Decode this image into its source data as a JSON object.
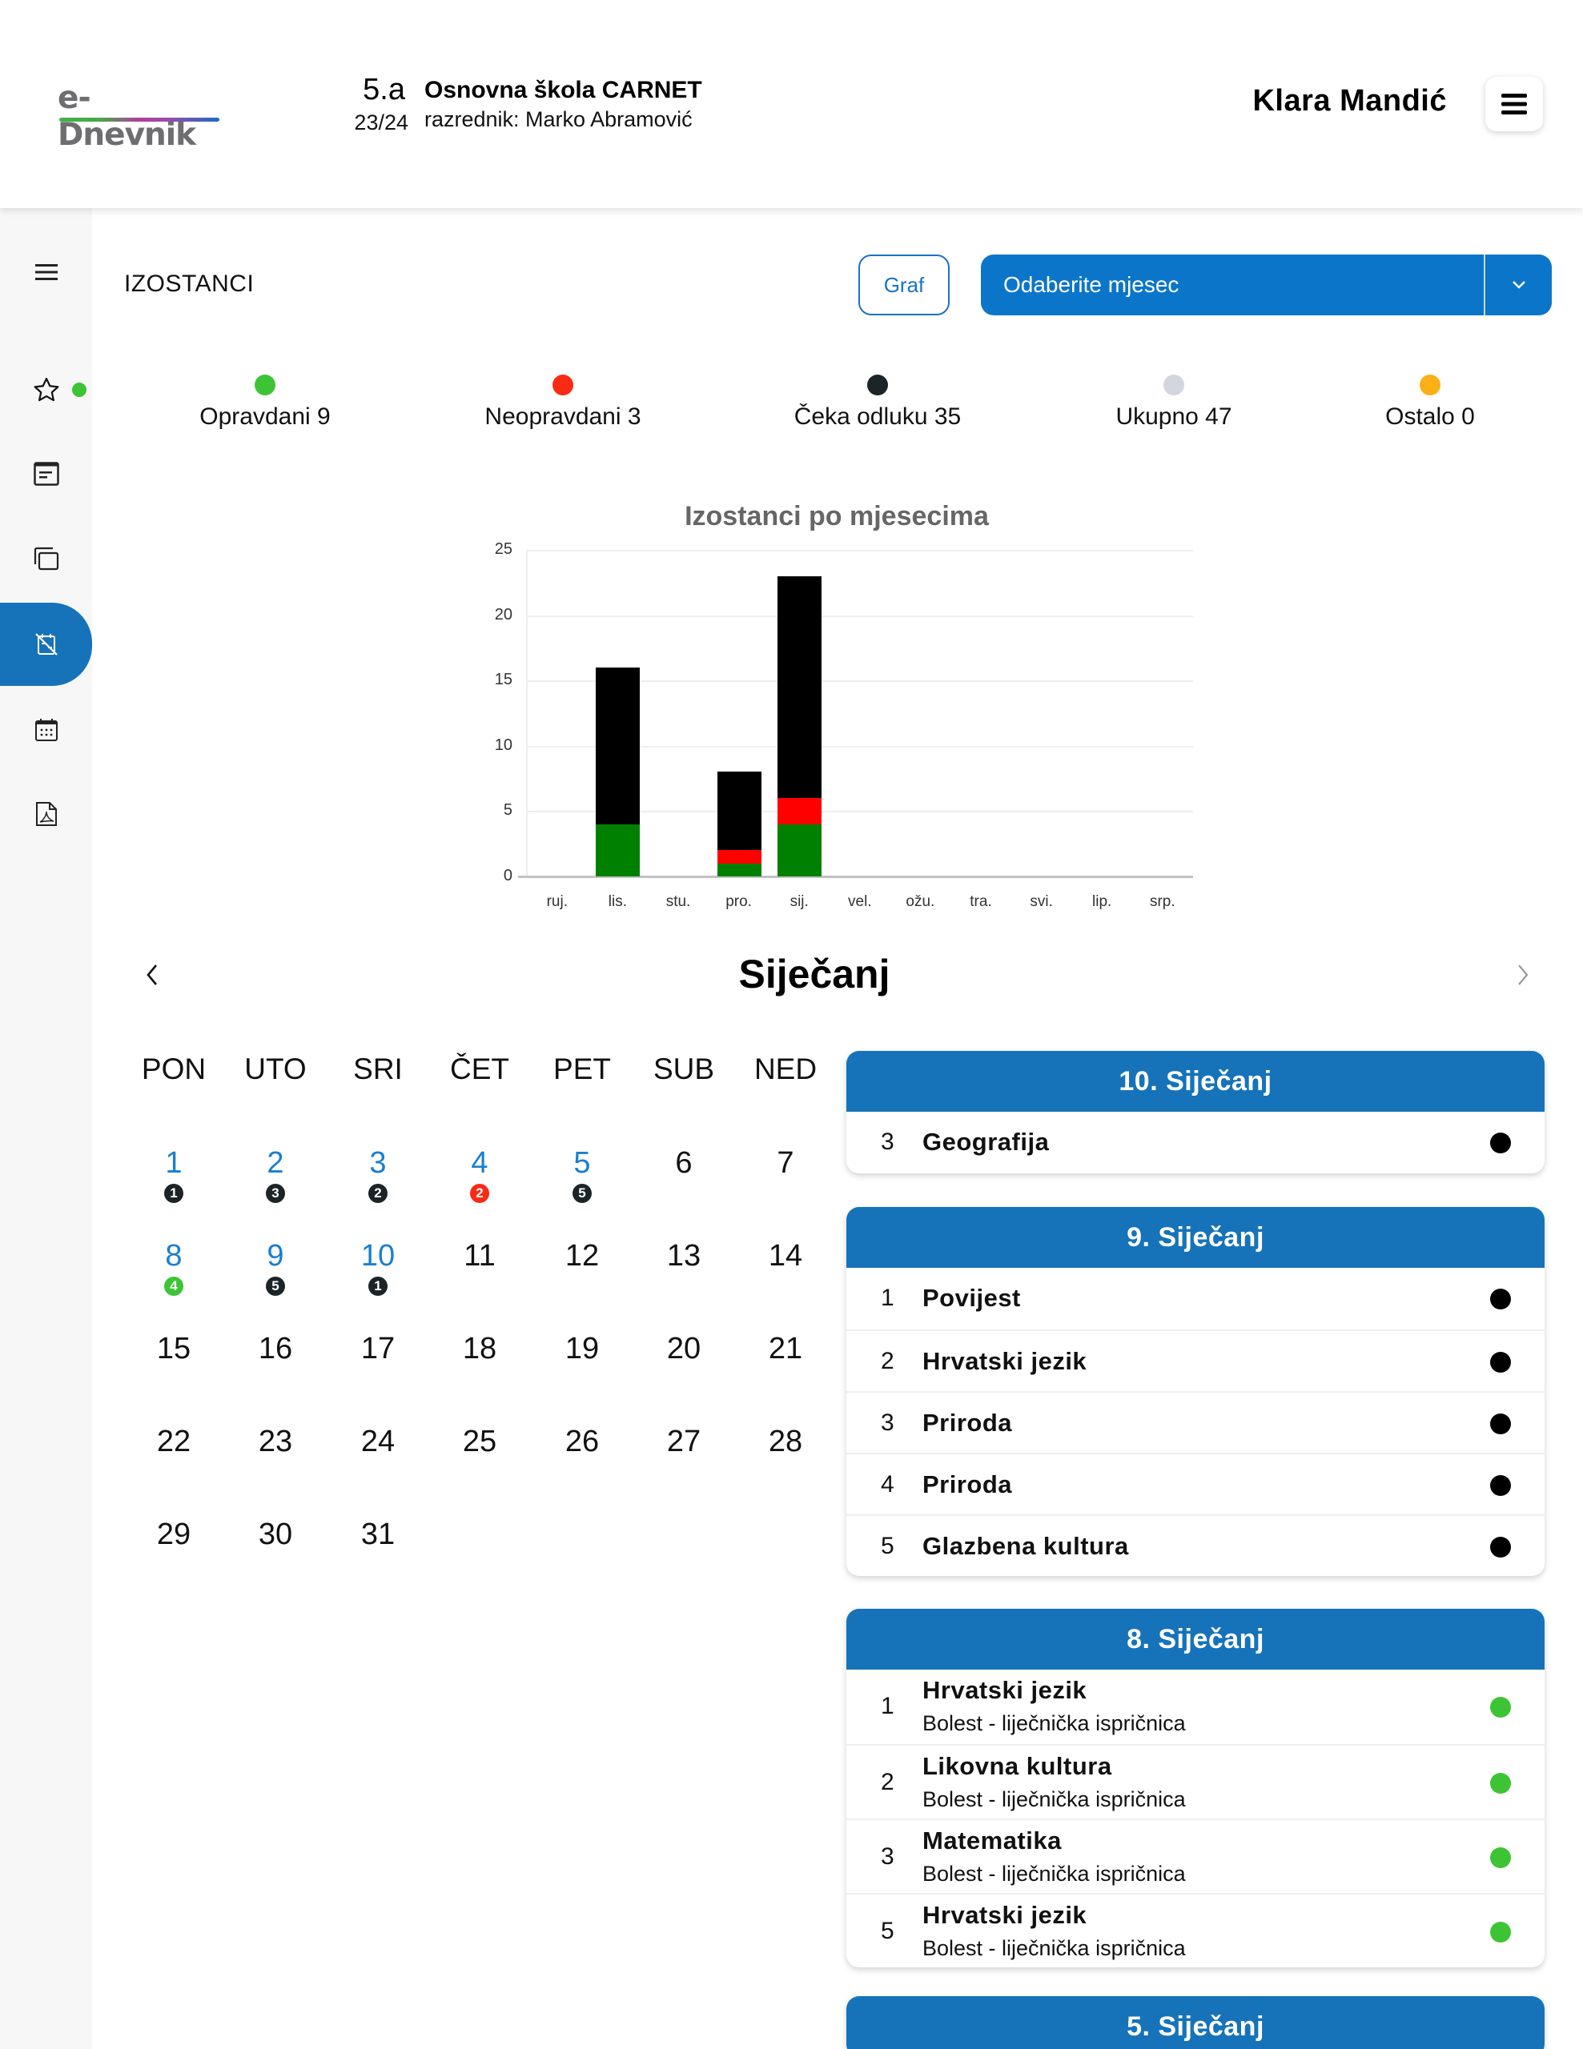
{
  "header": {
    "logo_text": "e-Dnevnik",
    "class_name": "5.a",
    "school_year": "23/24",
    "school_name": "Osnovna škola CARNET",
    "homeroom_teacher": "razrednik: Marko Abramović",
    "user_name": "Klara Mandić",
    "menu_icon": "hamburger-icon"
  },
  "sidebar": {
    "items": [
      {
        "icon": "hamburger-icon",
        "active": false
      },
      {
        "icon": "star-icon",
        "active": false,
        "indicator_color": "#3dc435"
      },
      {
        "icon": "notes-icon",
        "active": false
      },
      {
        "icon": "copy-icon",
        "active": false
      },
      {
        "icon": "calendar-off-icon",
        "active": true
      },
      {
        "icon": "calendar-icon",
        "active": false
      },
      {
        "icon": "pdf-icon",
        "active": false
      }
    ]
  },
  "toolbar": {
    "title": "IZOSTANCI",
    "graph_button": "Graf",
    "month_select": {
      "value": "Odaberite mjesec",
      "icon": "chevron-down-icon"
    }
  },
  "legend": [
    {
      "label": "Opravdani 9",
      "color": "#3dc435"
    },
    {
      "label": "Neopravdani 3",
      "color": "#fa2a14"
    },
    {
      "label": "Čeka odluku 35",
      "color": "#1b2426"
    },
    {
      "label": "Ukupno 47",
      "color": "#d2d6df"
    },
    {
      "label": "Ostalo 0",
      "color": "#fbb016"
    }
  ],
  "chart_data": {
    "type": "bar",
    "stacked": true,
    "title": "Izostanci po mjesecima",
    "xlabel": "",
    "ylabel": "",
    "ylim": [
      0,
      25
    ],
    "yticks": [
      0,
      5,
      10,
      15,
      20,
      25
    ],
    "grid": true,
    "legend_position": "none",
    "categories": [
      "ruj.",
      "lis.",
      "stu.",
      "pro.",
      "sij.",
      "vel.",
      "ožu.",
      "tra.",
      "svi.",
      "lip.",
      "srp."
    ],
    "series": [
      {
        "name": "Opravdani",
        "color": "#008000",
        "values": [
          0,
          4,
          0,
          1,
          4,
          0,
          0,
          0,
          0,
          0,
          0
        ]
      },
      {
        "name": "Neopravdani",
        "color": "#ff0000",
        "values": [
          0,
          0,
          0,
          1,
          2,
          0,
          0,
          0,
          0,
          0,
          0
        ]
      },
      {
        "name": "Čeka odluku",
        "color": "#000000",
        "values": [
          0,
          12,
          0,
          6,
          17,
          0,
          0,
          0,
          0,
          0,
          0
        ]
      }
    ]
  },
  "calendar": {
    "month": "Siječanj",
    "prev_icon": "chevron-left-icon",
    "next_icon": "chevron-right-icon",
    "weekdays": [
      "PON",
      "UTO",
      "SRI",
      "ČET",
      "PET",
      "SUB",
      "NED"
    ],
    "days": [
      {
        "d": "1",
        "badge": "1",
        "badge_color": "#1b2426"
      },
      {
        "d": "2",
        "badge": "3",
        "badge_color": "#1b2426"
      },
      {
        "d": "3",
        "badge": "2",
        "badge_color": "#1b2426"
      },
      {
        "d": "4",
        "badge": "2",
        "badge_color": "#fa2a14"
      },
      {
        "d": "5",
        "badge": "5",
        "badge_color": "#1b2426"
      },
      {
        "d": "6"
      },
      {
        "d": "7"
      },
      {
        "d": "8",
        "badge": "4",
        "badge_color": "#3dc435"
      },
      {
        "d": "9",
        "badge": "5",
        "badge_color": "#1b2426"
      },
      {
        "d": "10",
        "badge": "1",
        "badge_color": "#1b2426"
      },
      {
        "d": "11"
      },
      {
        "d": "12"
      },
      {
        "d": "13"
      },
      {
        "d": "14"
      },
      {
        "d": "15"
      },
      {
        "d": "16"
      },
      {
        "d": "17"
      },
      {
        "d": "18"
      },
      {
        "d": "19"
      },
      {
        "d": "20"
      },
      {
        "d": "21"
      },
      {
        "d": "22"
      },
      {
        "d": "23"
      },
      {
        "d": "24"
      },
      {
        "d": "25"
      },
      {
        "d": "26"
      },
      {
        "d": "27"
      },
      {
        "d": "28"
      },
      {
        "d": "29"
      },
      {
        "d": "30"
      },
      {
        "d": "31"
      }
    ]
  },
  "day_cards": [
    {
      "title": "10. Siječanj",
      "rows": [
        {
          "hour": "3",
          "subject": "Geografija",
          "status_color": "#000000"
        }
      ]
    },
    {
      "title": "9. Siječanj",
      "rows": [
        {
          "hour": "1",
          "subject": "Povijest",
          "status_color": "#000000"
        },
        {
          "hour": "2",
          "subject": "Hrvatski jezik",
          "status_color": "#000000"
        },
        {
          "hour": "3",
          "subject": "Priroda",
          "status_color": "#000000"
        },
        {
          "hour": "4",
          "subject": "Priroda",
          "status_color": "#000000"
        },
        {
          "hour": "5",
          "subject": "Glazbena kultura",
          "status_color": "#000000"
        }
      ]
    },
    {
      "title": "8. Siječanj",
      "rows": [
        {
          "hour": "1",
          "subject": "Hrvatski jezik",
          "reason": "Bolest - liječnička ispričnica",
          "status_color": "#3dc435"
        },
        {
          "hour": "2",
          "subject": "Likovna kultura",
          "reason": "Bolest - liječnička ispričnica",
          "status_color": "#3dc435"
        },
        {
          "hour": "3",
          "subject": "Matematika",
          "reason": "Bolest - liječnička ispričnica",
          "status_color": "#3dc435"
        },
        {
          "hour": "5",
          "subject": "Hrvatski jezik",
          "reason": "Bolest - liječnička ispričnica",
          "status_color": "#3dc435"
        }
      ]
    },
    {
      "title": "5. Siječanj",
      "rows": []
    }
  ],
  "colors": {
    "primary": "#1673b9",
    "select_bg": "#0b76c9",
    "date_link": "#1a7fcf"
  }
}
